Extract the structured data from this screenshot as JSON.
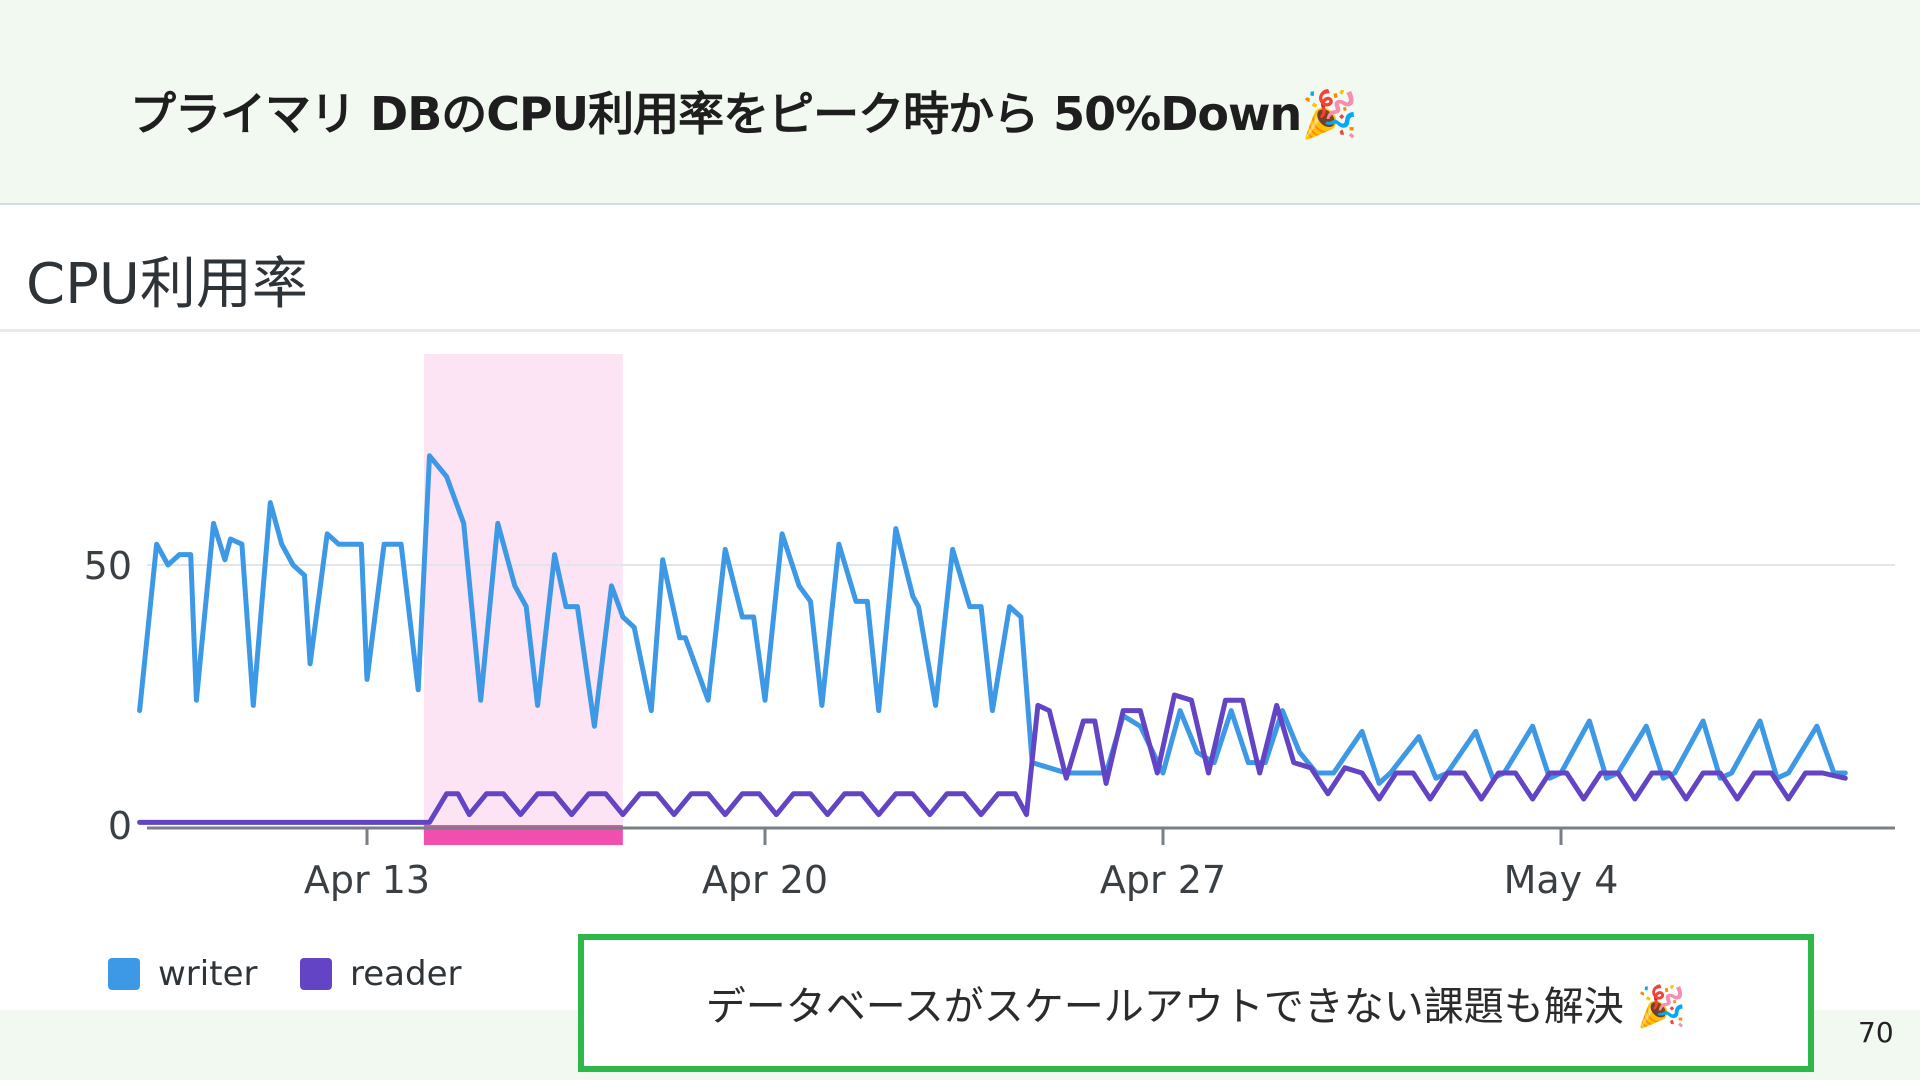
{
  "slide": {
    "title": "プライマリ DBのCPU利用率をピーク時から 50%Down🎉",
    "page_number": "70"
  },
  "callout": {
    "text": "データベースがスケールアウトできない課題も解決 🎉"
  },
  "legend": [
    {
      "label": "writer",
      "color": "#3d98e6"
    },
    {
      "label": "reader",
      "color": "#6244c4"
    }
  ],
  "chart_data": {
    "type": "line",
    "title": "CPU利用率",
    "x_tick_labels": [
      "Apr 13",
      "Apr 20",
      "Apr 27",
      "May 4"
    ],
    "y_tick_labels": [
      "0",
      "50"
    ],
    "x_range_days": [
      "Apr 9",
      "May 9"
    ],
    "ylim": [
      0,
      75
    ],
    "grid": true,
    "legend_position": "bottom-left",
    "highlight": {
      "from": "Apr 14",
      "to": "Apr 17.5",
      "color": "#fde4f4",
      "bar_color": "#f04fb0"
    },
    "series": [
      {
        "name": "writer",
        "color": "#3d98e6",
        "points": [
          [
            "Apr 9.0",
            22
          ],
          [
            "Apr 9.3",
            54
          ],
          [
            "Apr 9.5",
            50
          ],
          [
            "Apr 9.7",
            52
          ],
          [
            "Apr 9.9",
            52
          ],
          [
            "Apr 10.0",
            24
          ],
          [
            "Apr 10.3",
            58
          ],
          [
            "Apr 10.5",
            51
          ],
          [
            "Apr 10.6",
            55
          ],
          [
            "Apr 10.8",
            54
          ],
          [
            "Apr 11.0",
            23
          ],
          [
            "Apr 11.3",
            62
          ],
          [
            "Apr 11.5",
            54
          ],
          [
            "Apr 11.7",
            50
          ],
          [
            "Apr 11.9",
            48
          ],
          [
            "Apr 12.0",
            31
          ],
          [
            "Apr 12.3",
            56
          ],
          [
            "Apr 12.5",
            54
          ],
          [
            "Apr 12.7",
            54
          ],
          [
            "Apr 12.9",
            54
          ],
          [
            "Apr 13.0",
            28
          ],
          [
            "Apr 13.3",
            54
          ],
          [
            "Apr 13.5",
            54
          ],
          [
            "Apr 13.6",
            54
          ],
          [
            "Apr 13.9",
            26
          ],
          [
            "Apr 14.1",
            71
          ],
          [
            "Apr 14.4",
            67
          ],
          [
            "Apr 14.7",
            58
          ],
          [
            "Apr 15.0",
            24
          ],
          [
            "Apr 15.3",
            58
          ],
          [
            "Apr 15.6",
            46
          ],
          [
            "Apr 15.8",
            42
          ],
          [
            "Apr 16.0",
            23
          ],
          [
            "Apr 16.3",
            52
          ],
          [
            "Apr 16.5",
            42
          ],
          [
            "Apr 16.7",
            42
          ],
          [
            "Apr 17.0",
            19
          ],
          [
            "Apr 17.3",
            46
          ],
          [
            "Apr 17.5",
            40
          ],
          [
            "Apr 17.7",
            38
          ],
          [
            "Apr 18.0",
            22
          ],
          [
            "Apr 18.2",
            51
          ],
          [
            "Apr 18.5",
            36
          ],
          [
            "Apr 18.6",
            36
          ],
          [
            "Apr 19.0",
            24
          ],
          [
            "Apr 19.3",
            53
          ],
          [
            "Apr 19.6",
            40
          ],
          [
            "Apr 19.8",
            40
          ],
          [
            "Apr 20.0",
            24
          ],
          [
            "Apr 20.3",
            56
          ],
          [
            "Apr 20.6",
            46
          ],
          [
            "Apr 20.8",
            43
          ],
          [
            "Apr 21.0",
            23
          ],
          [
            "Apr 21.3",
            54
          ],
          [
            "Apr 21.6",
            43
          ],
          [
            "Apr 21.8",
            43
          ],
          [
            "Apr 22.0",
            22
          ],
          [
            "Apr 22.3",
            57
          ],
          [
            "Apr 22.6",
            44
          ],
          [
            "Apr 22.7",
            42
          ],
          [
            "Apr 23.0",
            23
          ],
          [
            "Apr 23.3",
            53
          ],
          [
            "Apr 23.6",
            42
          ],
          [
            "Apr 23.8",
            42
          ],
          [
            "Apr 24.0",
            22
          ],
          [
            "Apr 24.3",
            42
          ],
          [
            "Apr 24.5",
            40
          ],
          [
            "Apr 24.7",
            12
          ],
          [
            "Apr 25.0",
            11
          ],
          [
            "Apr 25.3",
            10
          ],
          [
            "Apr 25.6",
            10
          ],
          [
            "Apr 26.0",
            10
          ],
          [
            "Apr 26.3",
            21
          ],
          [
            "Apr 26.6",
            19
          ],
          [
            "Apr 27.0",
            10
          ],
          [
            "Apr 27.3",
            22
          ],
          [
            "Apr 27.6",
            14
          ],
          [
            "Apr 27.9",
            12
          ],
          [
            "Apr 28.2",
            22
          ],
          [
            "Apr 28.5",
            12
          ],
          [
            "Apr 28.8",
            12
          ],
          [
            "Apr 29.1",
            22
          ],
          [
            "Apr 29.4",
            14
          ],
          [
            "Apr 29.7",
            10
          ],
          [
            "Apr 30.0",
            10
          ],
          [
            "Apr 30.5",
            18
          ],
          [
            "Apr 30.8",
            8
          ],
          [
            "May 1.0",
            10
          ],
          [
            "May 1.5",
            17
          ],
          [
            "May 1.8",
            9
          ],
          [
            "May 2.0",
            10
          ],
          [
            "May 2.5",
            18
          ],
          [
            "May 2.8",
            9
          ],
          [
            "May 3.0",
            10
          ],
          [
            "May 3.5",
            19
          ],
          [
            "May 3.8",
            9
          ],
          [
            "May 4.0",
            10
          ],
          [
            "May 4.5",
            20
          ],
          [
            "May 4.8",
            9
          ],
          [
            "May 5.0",
            10
          ],
          [
            "May 5.5",
            19
          ],
          [
            "May 5.8",
            9
          ],
          [
            "May 6.0",
            10
          ],
          [
            "May 6.5",
            20
          ],
          [
            "May 6.8",
            9
          ],
          [
            "May 7.0",
            10
          ],
          [
            "May 7.5",
            20
          ],
          [
            "May 7.8",
            9
          ],
          [
            "May 8.0",
            10
          ],
          [
            "May 8.5",
            19
          ],
          [
            "May 8.8",
            10
          ],
          [
            "May 9.0",
            10
          ]
        ]
      },
      {
        "name": "reader",
        "color": "#6244c4",
        "points": [
          [
            "Apr 9.0",
            0.5
          ],
          [
            "Apr 14.1",
            0.5
          ],
          [
            "Apr 14.4",
            6
          ],
          [
            "Apr 14.6",
            6
          ],
          [
            "Apr 14.8",
            2
          ],
          [
            "Apr 15.1",
            6
          ],
          [
            "Apr 15.4",
            6
          ],
          [
            "Apr 15.7",
            2
          ],
          [
            "Apr 16.0",
            6
          ],
          [
            "Apr 16.3",
            6
          ],
          [
            "Apr 16.6",
            2
          ],
          [
            "Apr 16.9",
            6
          ],
          [
            "Apr 17.2",
            6
          ],
          [
            "Apr 17.5",
            2
          ],
          [
            "Apr 17.8",
            6
          ],
          [
            "Apr 18.1",
            6
          ],
          [
            "Apr 18.4",
            2
          ],
          [
            "Apr 18.7",
            6
          ],
          [
            "Apr 19.0",
            6
          ],
          [
            "Apr 19.3",
            2
          ],
          [
            "Apr 19.6",
            6
          ],
          [
            "Apr 19.9",
            6
          ],
          [
            "Apr 20.2",
            2
          ],
          [
            "Apr 20.5",
            6
          ],
          [
            "Apr 20.8",
            6
          ],
          [
            "Apr 21.1",
            2
          ],
          [
            "Apr 21.4",
            6
          ],
          [
            "Apr 21.7",
            6
          ],
          [
            "Apr 22.0",
            2
          ],
          [
            "Apr 22.3",
            6
          ],
          [
            "Apr 22.6",
            6
          ],
          [
            "Apr 22.9",
            2
          ],
          [
            "Apr 23.2",
            6
          ],
          [
            "Apr 23.5",
            6
          ],
          [
            "Apr 23.8",
            2
          ],
          [
            "Apr 24.1",
            6
          ],
          [
            "Apr 24.4",
            6
          ],
          [
            "Apr 24.6",
            2
          ],
          [
            "Apr 24.8",
            23
          ],
          [
            "Apr 25.0",
            22
          ],
          [
            "Apr 25.3",
            9
          ],
          [
            "Apr 25.6",
            20
          ],
          [
            "Apr 25.8",
            20
          ],
          [
            "Apr 26.0",
            8
          ],
          [
            "Apr 26.3",
            22
          ],
          [
            "Apr 26.6",
            22
          ],
          [
            "Apr 26.9",
            10
          ],
          [
            "Apr 27.2",
            25
          ],
          [
            "Apr 27.5",
            24
          ],
          [
            "Apr 27.8",
            10
          ],
          [
            "Apr 28.1",
            24
          ],
          [
            "Apr 28.4",
            24
          ],
          [
            "Apr 28.7",
            10
          ],
          [
            "Apr 29.0",
            23
          ],
          [
            "Apr 29.3",
            12
          ],
          [
            "Apr 29.6",
            11
          ],
          [
            "Apr 29.9",
            6
          ],
          [
            "Apr 30.2",
            11
          ],
          [
            "Apr 30.5",
            10
          ],
          [
            "Apr 30.8",
            5
          ],
          [
            "May 1.1",
            10
          ],
          [
            "May 1.4",
            10
          ],
          [
            "May 1.7",
            5
          ],
          [
            "May 2.0",
            10
          ],
          [
            "May 2.3",
            10
          ],
          [
            "May 2.6",
            5
          ],
          [
            "May 2.9",
            10
          ],
          [
            "May 3.2",
            10
          ],
          [
            "May 3.5",
            5
          ],
          [
            "May 3.8",
            10
          ],
          [
            "May 4.1",
            10
          ],
          [
            "May 4.4",
            5
          ],
          [
            "May 4.7",
            10
          ],
          [
            "May 5.0",
            10
          ],
          [
            "May 5.3",
            5
          ],
          [
            "May 5.6",
            10
          ],
          [
            "May 5.9",
            10
          ],
          [
            "May 6.2",
            5
          ],
          [
            "May 6.5",
            10
          ],
          [
            "May 6.8",
            10
          ],
          [
            "May 7.1",
            5
          ],
          [
            "May 7.4",
            10
          ],
          [
            "May 7.7",
            10
          ],
          [
            "May 8.0",
            5
          ],
          [
            "May 8.3",
            10
          ],
          [
            "May 8.6",
            10
          ],
          [
            "May 9.0",
            9
          ]
        ]
      }
    ]
  }
}
